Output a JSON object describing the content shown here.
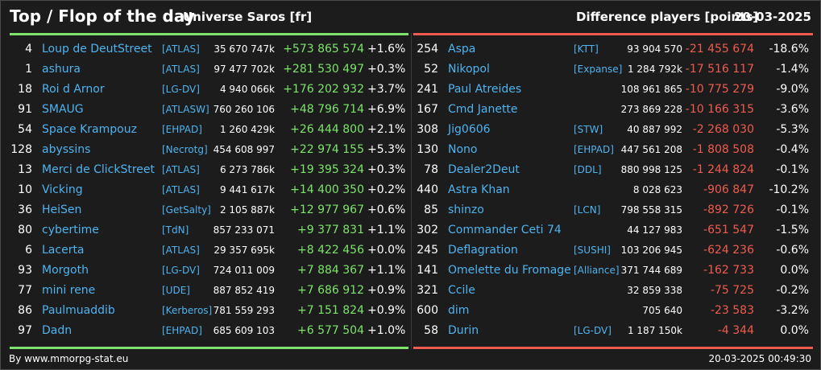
{
  "header": {
    "title": "Top / Flop of the day",
    "server": "Universe Saros [fr]",
    "metric": "Difference players [points]",
    "date": "20-03-2025"
  },
  "colors": {
    "background": "#1c1c1c",
    "top_accent": "#7de36b",
    "flop_accent": "#ef5b4f",
    "link": "#4fb3f0"
  },
  "top": [
    {
      "rank": "4",
      "name": "Loup de DeutStreet",
      "guild": "[ATLAS]",
      "points": "35 670 747k",
      "diff": "+573 865 574",
      "pct": "+1.6%"
    },
    {
      "rank": "1",
      "name": "ashura",
      "guild": "[ATLAS]",
      "points": "97 477 702k",
      "diff": "+281 530 497",
      "pct": "+0.3%"
    },
    {
      "rank": "18",
      "name": "Roi d Arnor",
      "guild": "[LG-DV]",
      "points": "4 940 066k",
      "diff": "+176 202 932",
      "pct": "+3.7%"
    },
    {
      "rank": "91",
      "name": "SMAUG",
      "guild": "[ATLASW]",
      "points": "760 260 106",
      "diff": "+48 796 714",
      "pct": "+6.9%"
    },
    {
      "rank": "54",
      "name": "Space Krampouz",
      "guild": "[EHPAD]",
      "points": "1 260 429k",
      "diff": "+26 444 800",
      "pct": "+2.1%"
    },
    {
      "rank": "128",
      "name": "abyssins",
      "guild": "[Necrotg]",
      "points": "454 608 997",
      "diff": "+22 974 155",
      "pct": "+5.3%"
    },
    {
      "rank": "13",
      "name": "Merci de ClickStreet",
      "guild": "[ATLAS]",
      "points": "6 273 786k",
      "diff": "+19 395 324",
      "pct": "+0.3%"
    },
    {
      "rank": "10",
      "name": "Vicking",
      "guild": "[ATLAS]",
      "points": "9 441 617k",
      "diff": "+14 400 350",
      "pct": "+0.2%"
    },
    {
      "rank": "36",
      "name": "HeiSen",
      "guild": "[GetSalty]",
      "points": "2 105 887k",
      "diff": "+12 977 967",
      "pct": "+0.6%"
    },
    {
      "rank": "80",
      "name": "cybertime",
      "guild": "[TdN]",
      "points": "857 233 071",
      "diff": "+9 377 831",
      "pct": "+1.1%"
    },
    {
      "rank": "6",
      "name": "Lacerta",
      "guild": "[ATLAS]",
      "points": "29 357 695k",
      "diff": "+8 422 456",
      "pct": "+0.0%"
    },
    {
      "rank": "93",
      "name": "Morgoth",
      "guild": "[LG-DV]",
      "points": "724 011 009",
      "diff": "+7 884 367",
      "pct": "+1.1%"
    },
    {
      "rank": "77",
      "name": "mini rene",
      "guild": "[UDE]",
      "points": "887 852 419",
      "diff": "+7 686 912",
      "pct": "+0.9%"
    },
    {
      "rank": "86",
      "name": "Paulmuaddib",
      "guild": "[Kerberos]",
      "points": "781 559 293",
      "diff": "+7 151 824",
      "pct": "+0.9%"
    },
    {
      "rank": "97",
      "name": "Dadn",
      "guild": "[EHPAD]",
      "points": "685 609 103",
      "diff": "+6 577 504",
      "pct": "+1.0%"
    }
  ],
  "flop": [
    {
      "rank": "254",
      "name": "Aspa",
      "guild": "[KTT]",
      "points": "93 904 570",
      "diff": "-21 455 674",
      "pct": "-18.6%"
    },
    {
      "rank": "52",
      "name": "Nikopol",
      "guild": "[Expanse]",
      "points": "1 284 792k",
      "diff": "-17 516 117",
      "pct": "-1.4%"
    },
    {
      "rank": "241",
      "name": "Paul Atreides",
      "guild": "",
      "points": "108 961 865",
      "diff": "-10 775 279",
      "pct": "-9.0%"
    },
    {
      "rank": "167",
      "name": "Cmd Janette",
      "guild": "",
      "points": "273 869 228",
      "diff": "-10 166 315",
      "pct": "-3.6%"
    },
    {
      "rank": "308",
      "name": "Jig0606",
      "guild": "[STW]",
      "points": "40 887 992",
      "diff": "-2 268 030",
      "pct": "-5.3%"
    },
    {
      "rank": "130",
      "name": "Nono",
      "guild": "[EHPAD]",
      "points": "447 561 208",
      "diff": "-1 808 508",
      "pct": "-0.4%"
    },
    {
      "rank": "78",
      "name": "Dealer2Deut",
      "guild": "[DDL]",
      "points": "880 998 125",
      "diff": "-1 244 824",
      "pct": "-0.1%"
    },
    {
      "rank": "440",
      "name": "Astra Khan",
      "guild": "",
      "points": "8 028 623",
      "diff": "-906 847",
      "pct": "-10.2%"
    },
    {
      "rank": "85",
      "name": "shinzo",
      "guild": "[LCN]",
      "points": "798 558 315",
      "diff": "-892 726",
      "pct": "-0.1%"
    },
    {
      "rank": "302",
      "name": "Commander Ceti 74",
      "guild": "",
      "points": "44 127 983",
      "diff": "-651 547",
      "pct": "-1.5%"
    },
    {
      "rank": "245",
      "name": "Deflagration",
      "guild": "[SUSHI]",
      "points": "103 206 945",
      "diff": "-624 236",
      "pct": "-0.6%"
    },
    {
      "rank": "141",
      "name": "Omelette du Fromage",
      "guild": "[Alliance]",
      "points": "371 744 689",
      "diff": "-162 733",
      "pct": "0.0%"
    },
    {
      "rank": "321",
      "name": "Ccile",
      "guild": "",
      "points": "32 859 338",
      "diff": "-75 725",
      "pct": "-0.2%"
    },
    {
      "rank": "600",
      "name": "dim",
      "guild": "",
      "points": "705 640",
      "diff": "-23 583",
      "pct": "-3.2%"
    },
    {
      "rank": "58",
      "name": "Durin",
      "guild": "[LG-DV]",
      "points": "1 187 150k",
      "diff": "-4 344",
      "pct": "0.0%"
    }
  ],
  "footer": {
    "credit": "By www.mmorpg-stat.eu",
    "timestamp": "20-03-2025 00:49:30"
  }
}
